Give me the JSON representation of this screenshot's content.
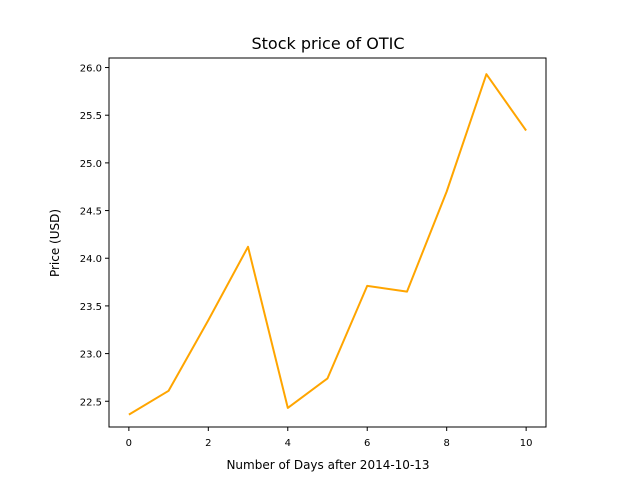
{
  "chart_data": {
    "type": "line",
    "title": "Stock price of OTIC",
    "xlabel": "Number of Days after 2014-10-13",
    "ylabel": "Price (USD)",
    "x": [
      0,
      1,
      2,
      3,
      4,
      5,
      6,
      7,
      8,
      9,
      10
    ],
    "series": [
      {
        "values": [
          22.36,
          22.61,
          23.35,
          24.12,
          22.43,
          22.74,
          23.71,
          23.65,
          24.7,
          25.93,
          25.34
        ],
        "color": "#FFA500"
      }
    ],
    "xlim": [
      -0.5,
      10.5
    ],
    "ylim": [
      22.23,
      26.1
    ],
    "xticks": [
      0,
      2,
      4,
      6,
      8,
      10
    ],
    "yticks": [
      22.5,
      23.0,
      23.5,
      24.0,
      24.5,
      25.0,
      25.5,
      26.0
    ],
    "xtick_labels": [
      "0",
      "2",
      "4",
      "6",
      "8",
      "10"
    ],
    "ytick_labels": [
      "22.5",
      "23.0",
      "23.5",
      "24.0",
      "24.5",
      "25.0",
      "25.5",
      "26.0"
    ],
    "grid": false
  }
}
